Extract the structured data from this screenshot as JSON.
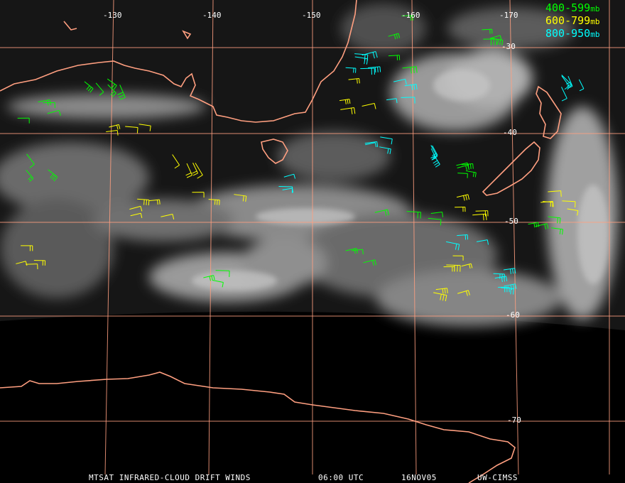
{
  "map": {
    "longitude_labels": [
      "-130",
      "-140",
      "-150",
      "-160",
      "-170"
    ],
    "latitude_labels": [
      "-30",
      "-40",
      "-50",
      "-60",
      "-70"
    ],
    "legend": [
      {
        "range": "400-599",
        "unit": "mb",
        "color": "#00ff00"
      },
      {
        "range": "600-799",
        "unit": "mb",
        "color": "#ffff00"
      },
      {
        "range": "800-950",
        "unit": "mb",
        "color": "#00ffff"
      }
    ],
    "footer": {
      "product": "MTSAT INFRARED-CLOUD DRIFT WINDS",
      "time": "06:00 UTC",
      "date": "16NOV05",
      "source": "UW-CIMSS"
    }
  }
}
